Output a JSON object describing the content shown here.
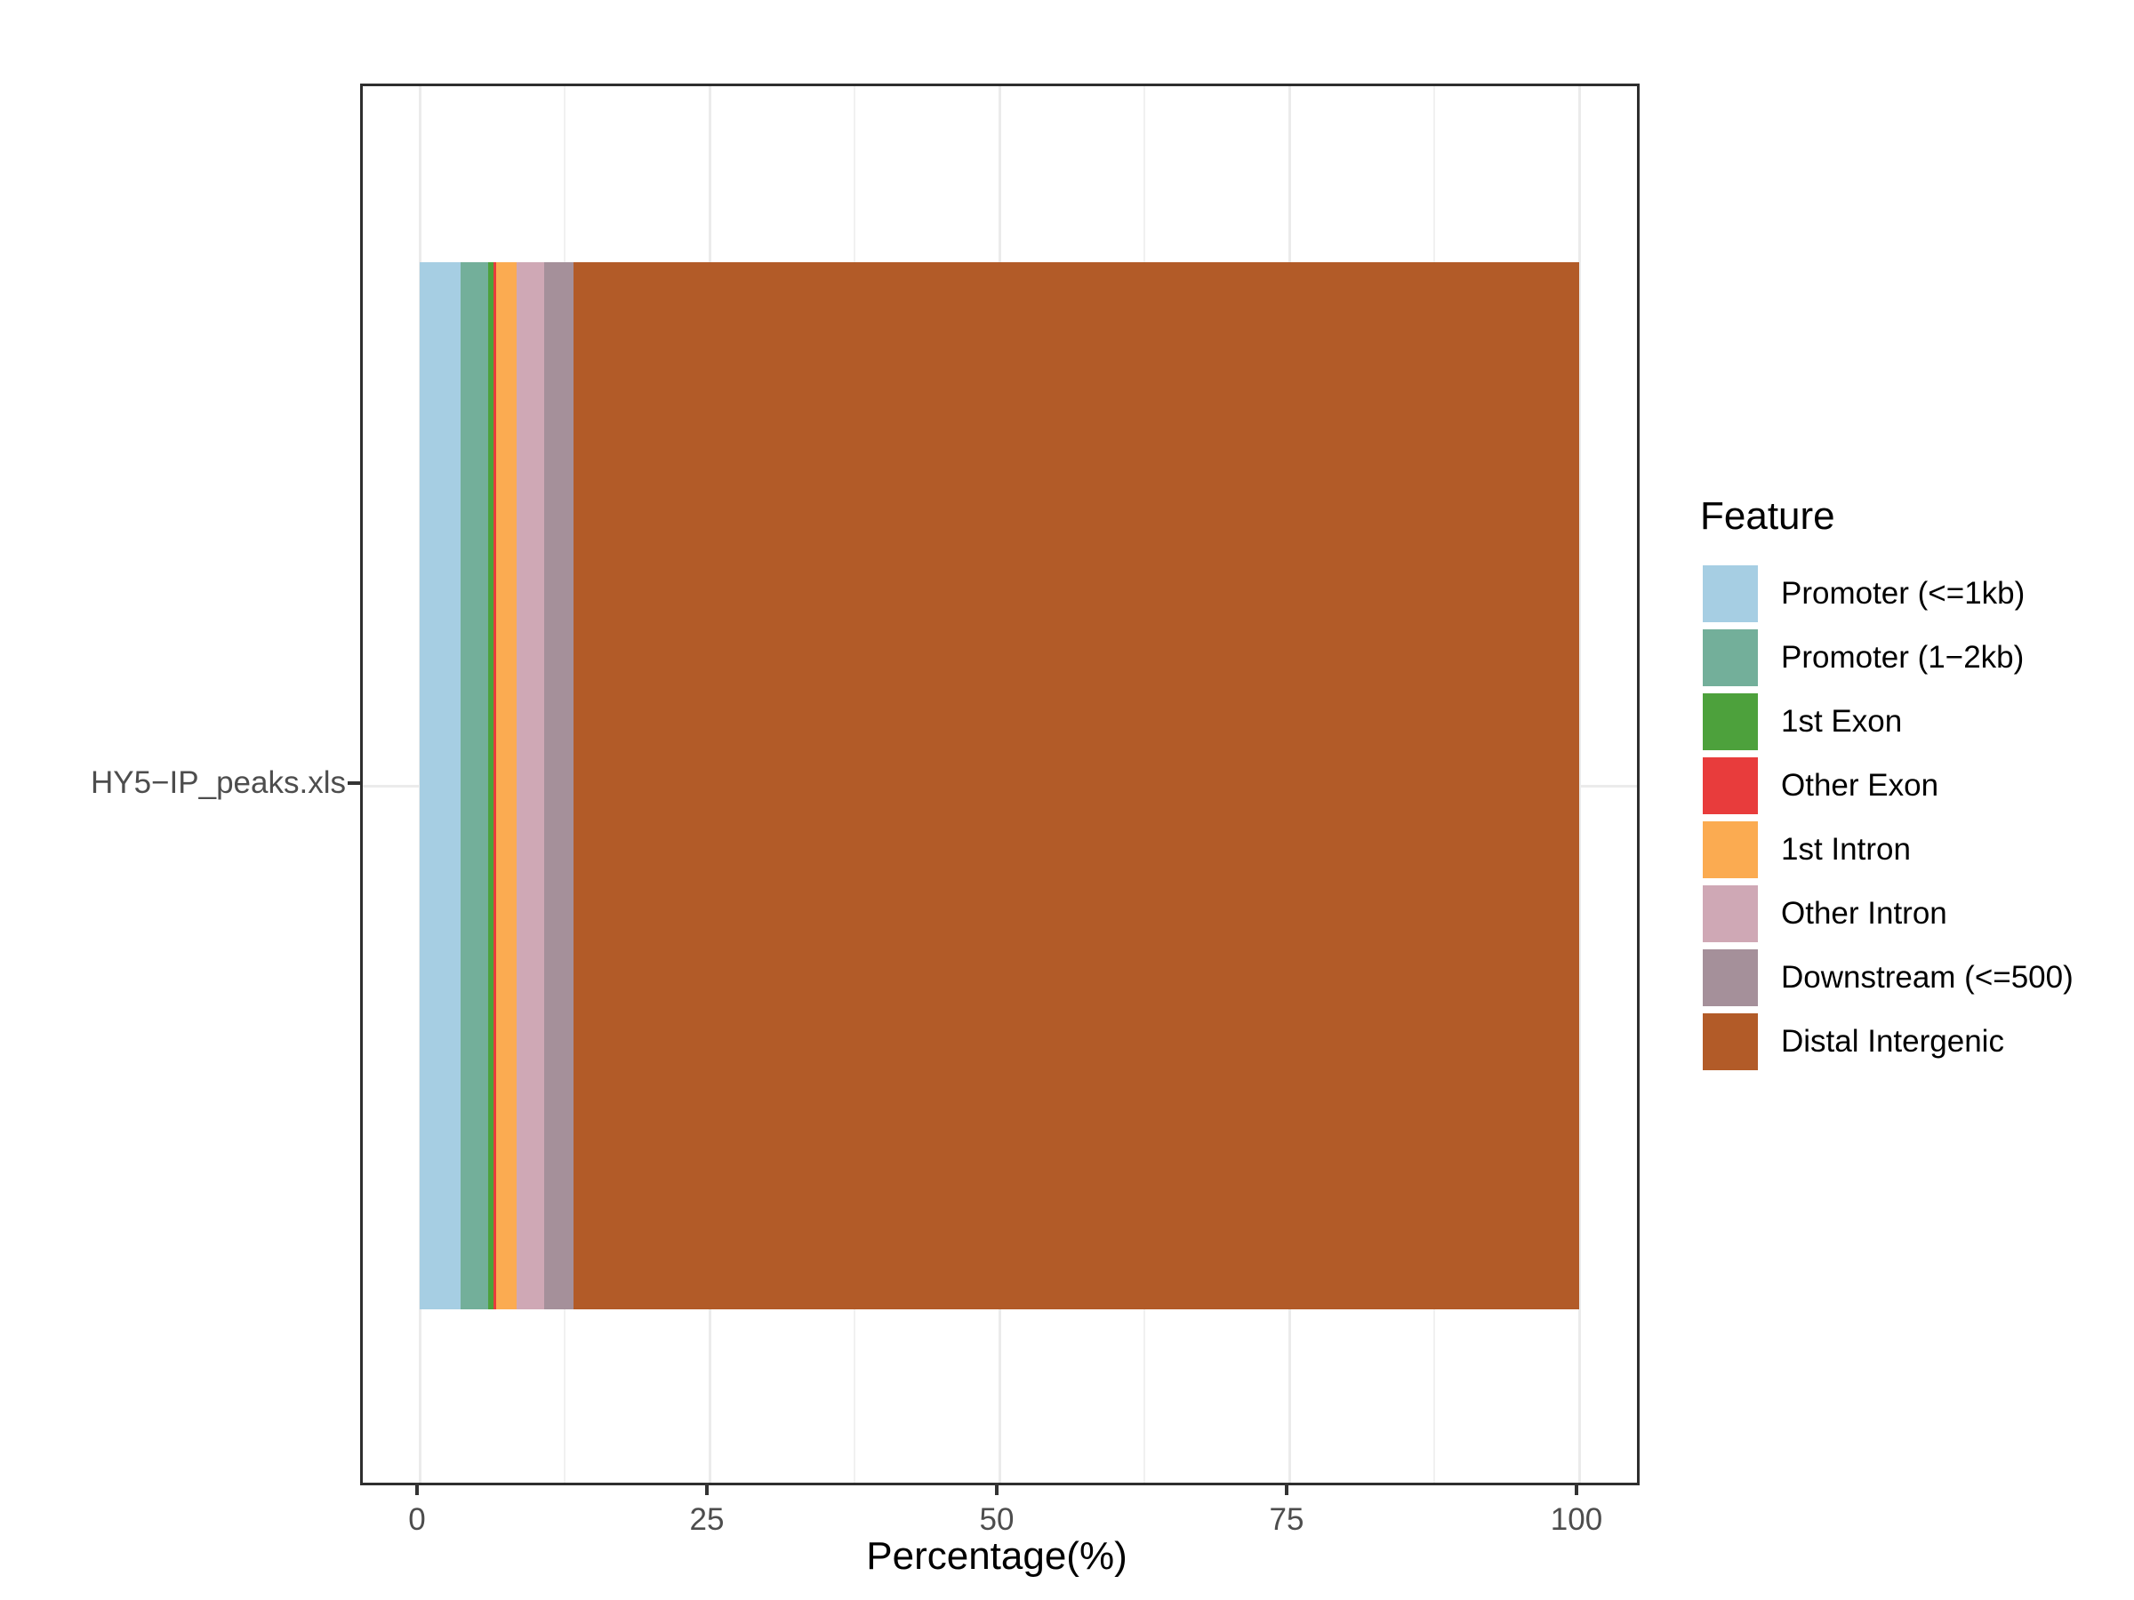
{
  "chart_data": {
    "type": "bar",
    "orientation": "horizontal",
    "stacked": true,
    "title": "",
    "xlabel": "Percentage(%)",
    "ylabel": "",
    "legend_title": "Feature",
    "legend_position": "right",
    "categories": [
      "HY5−IP_peaks.xls"
    ],
    "x_ticks": [
      0,
      25,
      50,
      75,
      100
    ],
    "xlim": [
      0,
      100
    ],
    "grid": "major-and-minor",
    "series": [
      {
        "name": "Promoter (<=1kb)",
        "color": "#A6CEE3",
        "values": [
          3.5
        ]
      },
      {
        "name": "Promoter (1−2kb)",
        "color": "#73AF9A",
        "values": [
          2.38
        ]
      },
      {
        "name": "1st Exon",
        "color": "#4DA13C",
        "values": [
          0.51
        ]
      },
      {
        "name": "Other Exon",
        "color": "#E83C3C",
        "values": [
          0.22
        ]
      },
      {
        "name": "1st Intron",
        "color": "#FBAB51",
        "values": [
          1.73
        ]
      },
      {
        "name": "Other Intron",
        "color": "#CFA8B5",
        "values": [
          2.43
        ]
      },
      {
        "name": "Downstream (<=500)",
        "color": "#A5909A",
        "values": [
          2.53
        ]
      },
      {
        "name": "Distal Intergenic",
        "color": "#B25B28",
        "values": [
          86.7
        ]
      }
    ]
  }
}
